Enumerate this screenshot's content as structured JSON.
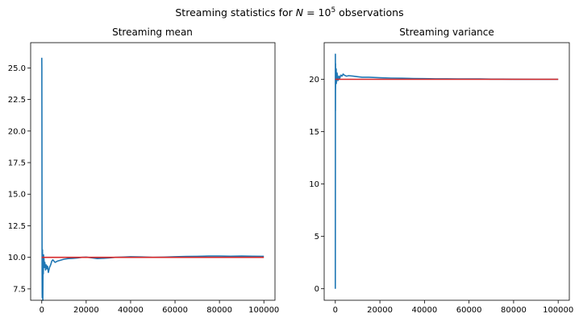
{
  "figure": {
    "suptitle_prefix": "Streaming statistics for ",
    "suptitle_var": "N",
    "suptitle_eq": " = 10",
    "suptitle_exp": "5",
    "suptitle_suffix": " observations"
  },
  "chart_data": [
    {
      "type": "line",
      "title": "Streaming mean",
      "xlabel": "",
      "ylabel": "",
      "xlim": [
        -5000,
        105000
      ],
      "ylim": [
        6.6,
        27.0
      ],
      "xticks": [
        0,
        20000,
        40000,
        60000,
        80000,
        100000
      ],
      "xtick_labels": [
        "0",
        "20000",
        "40000",
        "60000",
        "80000",
        "100000"
      ],
      "yticks": [
        7.5,
        10.0,
        12.5,
        15.0,
        17.5,
        20.0,
        22.5,
        25.0
      ],
      "ytick_labels": [
        "7.5",
        "10.0",
        "12.5",
        "15.0",
        "17.5",
        "20.0",
        "22.5",
        "25.0"
      ],
      "grid": false,
      "series": [
        {
          "color": "#1f77b4",
          "x": [
            0,
            30,
            60,
            90,
            120,
            150,
            180,
            210,
            240,
            280,
            320,
            360,
            400,
            450,
            500,
            600,
            700,
            800,
            900,
            1000,
            1200,
            1400,
            1700,
            2000,
            2300,
            2600,
            3000,
            3500,
            4000,
            4500,
            5000,
            6000,
            7000,
            8000,
            10000,
            12000,
            14000,
            16000,
            18000,
            20000,
            22000,
            25000,
            28000,
            30000,
            33000,
            36000,
            40000,
            45000,
            50000,
            55000,
            60000,
            65000,
            70000,
            75000,
            80000,
            85000,
            90000,
            95000,
            100000
          ],
          "y": [
            25.8,
            25.0,
            24.0,
            20.0,
            14.0,
            9.0,
            7.2,
            6.8,
            7.1,
            8.0,
            10.6,
            9.5,
            7.0,
            8.5,
            6.6,
            9.8,
            8.7,
            10.2,
            9.4,
            9.9,
            9.2,
            9.6,
            9.0,
            9.4,
            9.1,
            9.3,
            8.8,
            9.2,
            9.4,
            9.7,
            9.8,
            9.6,
            9.7,
            9.75,
            9.85,
            9.9,
            9.92,
            9.95,
            10.0,
            10.02,
            9.97,
            9.9,
            9.93,
            9.95,
            10.0,
            10.02,
            10.05,
            10.03,
            10.0,
            10.02,
            10.05,
            10.07,
            10.08,
            10.1,
            10.1,
            10.09,
            10.1,
            10.09,
            10.08
          ]
        },
        {
          "color": "#d62728",
          "x": [
            0,
            100000
          ],
          "y": [
            10.0,
            10.0
          ]
        }
      ]
    },
    {
      "type": "line",
      "title": "Streaming variance",
      "xlabel": "",
      "ylabel": "",
      "xlim": [
        -5000,
        105000
      ],
      "ylim": [
        -1.1,
        23.5
      ],
      "xticks": [
        0,
        20000,
        40000,
        60000,
        80000,
        100000
      ],
      "xtick_labels": [
        "0",
        "20000",
        "40000",
        "60000",
        "80000",
        "100000"
      ],
      "yticks": [
        0,
        5,
        10,
        15,
        20
      ],
      "ytick_labels": [
        "0",
        "5",
        "10",
        "15",
        "20"
      ],
      "grid": false,
      "series": [
        {
          "color": "#1f77b4",
          "x": [
            0,
            20,
            40,
            60,
            90,
            120,
            160,
            200,
            250,
            300,
            380,
            460,
            550,
            650,
            800,
            1000,
            1300,
            1600,
            2000,
            2500,
            3000,
            3500,
            4000,
            5000,
            6000,
            8000,
            10000,
            12000,
            15000,
            20000,
            25000,
            30000,
            35000,
            40000,
            45000,
            50000,
            55000,
            60000,
            65000,
            70000,
            75000,
            80000,
            90000,
            100000
          ],
          "y": [
            0.0,
            12.0,
            22.4,
            17.0,
            21.5,
            19.0,
            21.0,
            20.3,
            20.9,
            20.5,
            21.0,
            19.6,
            20.2,
            19.8,
            20.6,
            20.1,
            19.9,
            20.3,
            20.1,
            20.4,
            20.3,
            20.5,
            20.4,
            20.3,
            20.35,
            20.3,
            20.25,
            20.2,
            20.2,
            20.15,
            20.12,
            20.1,
            20.08,
            20.06,
            20.05,
            20.05,
            20.04,
            20.03,
            20.03,
            20.02,
            20.02,
            20.01,
            20.0,
            20.0
          ]
        },
        {
          "color": "#d62728",
          "x": [
            0,
            100000
          ],
          "y": [
            20.0,
            20.0
          ]
        }
      ]
    }
  ]
}
